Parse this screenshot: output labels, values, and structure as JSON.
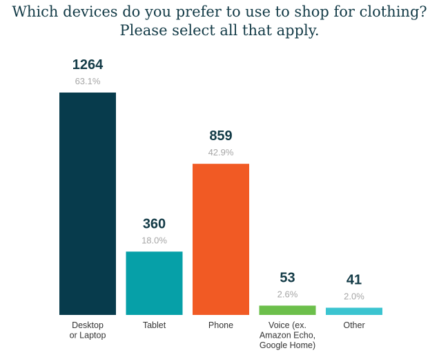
{
  "chart_data": {
    "type": "bar",
    "title_lines": [
      "Which devices do you prefer to use to shop for clothing?",
      "Please select all that apply."
    ],
    "categories": [
      [
        "Desktop",
        "or Laptop"
      ],
      [
        "Tablet"
      ],
      [
        "Phone"
      ],
      [
        "Voice (ex.",
        "Amazon Echo,",
        "Google Home)"
      ],
      [
        "Other"
      ]
    ],
    "values": [
      1264,
      360,
      859,
      53,
      41
    ],
    "value_labels": [
      "1264",
      "360",
      "859",
      "53",
      "41"
    ],
    "percent_labels": [
      "63.1%",
      "18.0%",
      "42.9%",
      "2.6%",
      "2.0%"
    ],
    "colors": [
      "#073b4c",
      "#06a0a8",
      "#f15a24",
      "#6cbf4b",
      "#3bc4d0"
    ],
    "ylim": [
      0,
      1264
    ],
    "grid": false,
    "legend": "none"
  }
}
